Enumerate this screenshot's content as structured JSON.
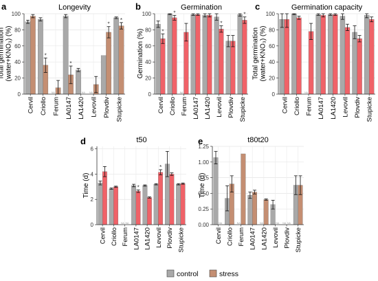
{
  "colors": {
    "control": "#a9a9a9",
    "stress": "#c48e72",
    "stress_panels_bc": "#f06268"
  },
  "legend": {
    "control_label": "control",
    "stress_label": "stress"
  },
  "chart_data": [
    {
      "id": "a",
      "letter": "a",
      "type": "bar",
      "title": "Longevity",
      "ylabel": "Total germination (water+KNO₃) (%)",
      "ylabel_lines": [
        "Total germination",
        "(water+KNO₃) (%)"
      ],
      "ylim": [
        0,
        100
      ],
      "yticks": [
        0,
        20,
        40,
        60,
        80,
        100
      ],
      "categories": [
        "Cervil",
        "Criollo",
        "Ferum",
        "LA0147",
        "LA1420",
        "Levovil",
        "Plovdiv",
        "Stupicke"
      ],
      "series": [
        {
          "name": "control",
          "values": [
            90,
            93,
            0,
            97,
            30,
            0,
            48,
            95
          ],
          "err": [
            2,
            2,
            0,
            2,
            2,
            0,
            0,
            1
          ],
          "stars": [
            false,
            false,
            false,
            false,
            false,
            false,
            false,
            false
          ],
          "na": [
            false,
            false,
            true,
            false,
            false,
            true,
            false,
            false
          ]
        },
        {
          "name": "stress",
          "values": [
            97,
            36,
            8,
            24,
            0,
            12,
            77,
            85
          ],
          "err": [
            2,
            9,
            9,
            11,
            0,
            10,
            7,
            4
          ],
          "stars": [
            false,
            true,
            false,
            true,
            false,
            false,
            true,
            true
          ],
          "na": [
            false,
            false,
            false,
            false,
            true,
            false,
            false,
            false
          ]
        }
      ]
    },
    {
      "id": "b",
      "letter": "b",
      "type": "bar",
      "title": "Germination",
      "ylabel": "Germination (%)",
      "ylabel_lines": [
        "Germination (%)"
      ],
      "ylim": [
        0,
        100
      ],
      "yticks": [
        0,
        20,
        40,
        60,
        80,
        100
      ],
      "categories": [
        "Cervil",
        "Criollo",
        "Ferum",
        "LA0147",
        "LA1420",
        "Levovil",
        "Plovdiv",
        "Stupicke"
      ],
      "series": [
        {
          "name": "control",
          "values": [
            87,
            100,
            0,
            99,
            98,
            96,
            66,
            99
          ],
          "err": [
            4,
            1,
            0,
            1,
            2,
            4,
            7,
            2
          ],
          "stars": [
            false,
            false,
            false,
            false,
            false,
            false,
            false,
            false
          ],
          "na": [
            false,
            false,
            true,
            false,
            false,
            false,
            false,
            false
          ]
        },
        {
          "name": "stress",
          "values": [
            69,
            95,
            77,
            99,
            98,
            81,
            66,
            92
          ],
          "err": [
            6,
            3,
            11,
            1,
            2,
            4,
            7,
            4
          ],
          "stars": [
            true,
            true,
            false,
            false,
            false,
            true,
            false,
            true
          ],
          "na": [
            false,
            false,
            false,
            false,
            false,
            false,
            false,
            false
          ]
        }
      ]
    },
    {
      "id": "c",
      "letter": "c",
      "type": "bar",
      "title": "Germination capacity",
      "ylabel": "Total germination (water+KNO₃) (%)",
      "ylabel_lines": [
        "Total germination",
        "(water+KNO₃) (%)"
      ],
      "ylim": [
        0,
        100
      ],
      "yticks": [
        0,
        20,
        40,
        60,
        80,
        100
      ],
      "categories": [
        "Cervil",
        "Criollo",
        "Ferum",
        "LA0147",
        "LA1420",
        "Levovil",
        "Plovdiv",
        "Stupicke"
      ],
      "series": [
        {
          "name": "control",
          "values": [
            93,
            100,
            0,
            99,
            99,
            97,
            77,
            98
          ],
          "err": [
            10,
            1,
            0,
            1,
            1,
            4,
            8,
            3
          ],
          "stars": [
            false,
            false,
            false,
            false,
            false,
            false,
            false,
            false
          ],
          "na": [
            false,
            false,
            true,
            false,
            false,
            false,
            false,
            false
          ]
        },
        {
          "name": "stress",
          "values": [
            93,
            95,
            78,
            98,
            99,
            83,
            69,
            93
          ],
          "err": [
            10,
            2,
            10,
            2,
            1,
            4,
            4,
            3
          ],
          "stars": [
            false,
            false,
            false,
            false,
            false,
            false,
            false,
            false
          ],
          "na": [
            false,
            false,
            false,
            false,
            false,
            false,
            false,
            false
          ]
        }
      ]
    },
    {
      "id": "d",
      "letter": "d",
      "type": "bar",
      "title": "t50",
      "ylabel": "Time (d)",
      "ylabel_lines": [
        "Time (d)"
      ],
      "ylim": [
        0,
        6.2
      ],
      "yticks": [
        0,
        2,
        4,
        6
      ],
      "categories": [
        "Cervil",
        "Criollo",
        "Ferum",
        "LA0147",
        "LA1420",
        "Levovil",
        "Plovdiv",
        "Stupicke"
      ],
      "series": [
        {
          "name": "control",
          "values": [
            3.3,
            2.85,
            0,
            3.1,
            3.1,
            3.2,
            4.8,
            3.2
          ],
          "err": [
            0.15,
            0.05,
            0,
            0.1,
            0.05,
            0.05,
            1.0,
            0.05
          ],
          "stars": [
            false,
            false,
            false,
            false,
            false,
            false,
            false,
            false
          ],
          "na": [
            false,
            false,
            true,
            false,
            false,
            false,
            false,
            false
          ]
        },
        {
          "name": "stress",
          "values": [
            4.2,
            3.0,
            0,
            2.65,
            2.15,
            4.15,
            4.0,
            3.25
          ],
          "err": [
            0.4,
            0.05,
            0,
            0.1,
            0.05,
            0.2,
            0.1,
            0.05
          ],
          "stars": [
            false,
            false,
            false,
            true,
            false,
            true,
            false,
            false
          ],
          "na": [
            false,
            false,
            true,
            false,
            false,
            false,
            false,
            false
          ]
        }
      ]
    },
    {
      "id": "e",
      "letter": "e",
      "type": "bar",
      "title": "t80t20",
      "ylabel": "Time (d)",
      "ylabel_lines": [
        "Time (d)"
      ],
      "ylim": [
        0,
        1.25
      ],
      "yticks": [
        0,
        0.25,
        0.5,
        0.75,
        1.0,
        1.25
      ],
      "ytick_labels": [
        "0.00",
        "0.25",
        "0.50",
        "0.75",
        "1.00",
        "1.25"
      ],
      "categories": [
        "Cervil",
        "Criollo",
        "Ferum",
        "LA0147",
        "LA1420",
        "Levovil",
        "Plovdiv",
        "Stupicke"
      ],
      "series": [
        {
          "name": "control",
          "values": [
            1.07,
            0.42,
            0,
            0.47,
            0.0,
            0.32,
            0,
            0.63
          ],
          "err": [
            0.1,
            0.2,
            0,
            0.05,
            0,
            0.07,
            0,
            0.15
          ],
          "stars": [
            false,
            false,
            false,
            false,
            false,
            false,
            false,
            false
          ],
          "na": [
            false,
            false,
            true,
            false,
            true,
            false,
            true,
            false
          ]
        },
        {
          "name": "stress",
          "values": [
            0,
            0.65,
            1.13,
            0.52,
            0.4,
            0,
            0,
            0.63
          ],
          "err": [
            0,
            0.13,
            0,
            0.03,
            0.01,
            0,
            0,
            0.15
          ],
          "stars": [
            false,
            false,
            false,
            false,
            false,
            false,
            false,
            false
          ],
          "na": [
            true,
            false,
            false,
            false,
            false,
            true,
            true,
            false
          ]
        }
      ]
    }
  ]
}
